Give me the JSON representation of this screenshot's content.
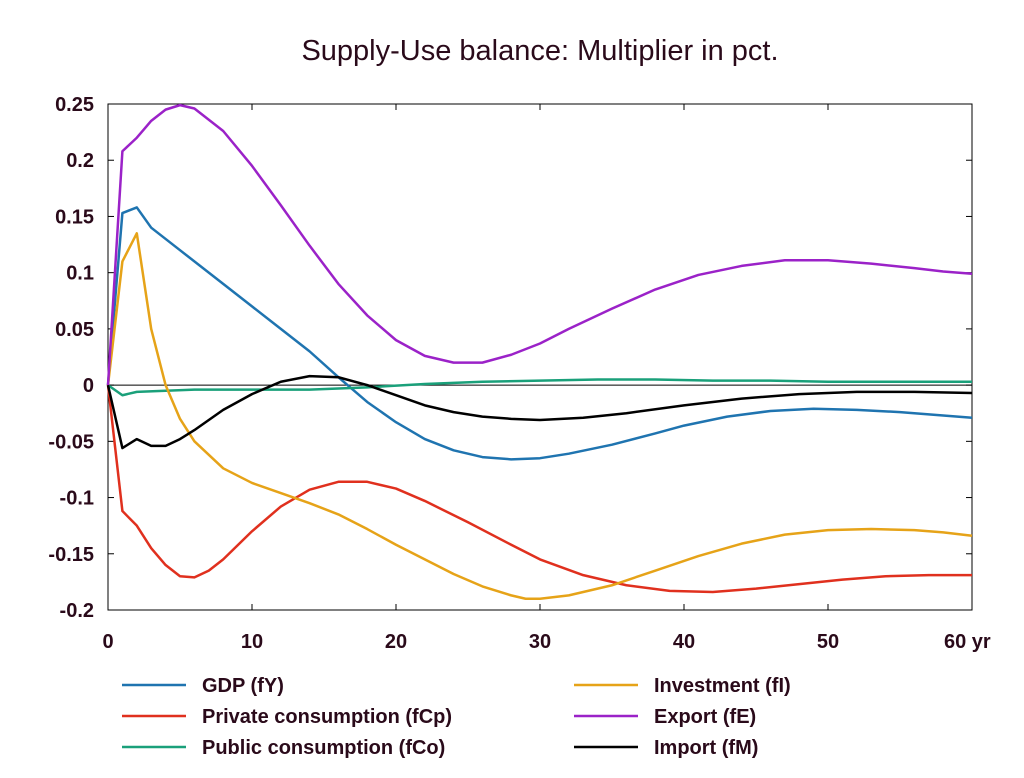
{
  "chart_data": {
    "type": "line",
    "title": "Supply-Use balance: Multiplier in pct.",
    "xlabel": "",
    "ylabel": "",
    "x_unit_label": "yr",
    "xlim": [
      0,
      60
    ],
    "ylim": [
      -0.2,
      0.25
    ],
    "x_ticks": [
      0,
      10,
      20,
      30,
      40,
      50,
      60
    ],
    "y_ticks": [
      0.25,
      0.2,
      0.15,
      0.1,
      0.05,
      0,
      -0.05,
      -0.1,
      -0.15,
      -0.2
    ],
    "y_tick_labels": [
      "0.25",
      "0.2",
      "0.15",
      "0.1",
      "0.05",
      "0",
      "-0.05",
      "-0.1",
      "-0.15",
      "-0.2"
    ],
    "x_tick_labels": [
      "0",
      "10",
      "20",
      "30",
      "40",
      "50",
      "60"
    ],
    "grid": false,
    "legend_position": "bottom",
    "series": [
      {
        "name": "GDP (fY)",
        "color": "#1f74b0",
        "points": [
          [
            0,
            0
          ],
          [
            1,
            0.153
          ],
          [
            2,
            0.158
          ],
          [
            3,
            0.14
          ],
          [
            5,
            0.12
          ],
          [
            8,
            0.09
          ],
          [
            10,
            0.07
          ],
          [
            12,
            0.05
          ],
          [
            14,
            0.03
          ],
          [
            16,
            0.007
          ],
          [
            18,
            -0.015
          ],
          [
            20,
            -0.033
          ],
          [
            22,
            -0.048
          ],
          [
            24,
            -0.058
          ],
          [
            26,
            -0.064
          ],
          [
            28,
            -0.066
          ],
          [
            30,
            -0.065
          ],
          [
            32,
            -0.061
          ],
          [
            35,
            -0.053
          ],
          [
            38,
            -0.043
          ],
          [
            40,
            -0.036
          ],
          [
            43,
            -0.028
          ],
          [
            46,
            -0.023
          ],
          [
            49,
            -0.021
          ],
          [
            52,
            -0.022
          ],
          [
            55,
            -0.024
          ],
          [
            58,
            -0.027
          ],
          [
            60,
            -0.029
          ]
        ]
      },
      {
        "name": "Private consumption (fCp)",
        "color": "#e0301e",
        "points": [
          [
            0,
            0
          ],
          [
            1,
            -0.112
          ],
          [
            2,
            -0.125
          ],
          [
            3,
            -0.145
          ],
          [
            4,
            -0.16
          ],
          [
            5,
            -0.17
          ],
          [
            6,
            -0.171
          ],
          [
            7,
            -0.165
          ],
          [
            8,
            -0.155
          ],
          [
            10,
            -0.13
          ],
          [
            12,
            -0.108
          ],
          [
            14,
            -0.093
          ],
          [
            16,
            -0.086
          ],
          [
            18,
            -0.086
          ],
          [
            20,
            -0.092
          ],
          [
            22,
            -0.103
          ],
          [
            25,
            -0.122
          ],
          [
            28,
            -0.142
          ],
          [
            30,
            -0.155
          ],
          [
            33,
            -0.169
          ],
          [
            36,
            -0.178
          ],
          [
            39,
            -0.183
          ],
          [
            42,
            -0.184
          ],
          [
            45,
            -0.181
          ],
          [
            48,
            -0.177
          ],
          [
            51,
            -0.173
          ],
          [
            54,
            -0.17
          ],
          [
            57,
            -0.169
          ],
          [
            60,
            -0.169
          ]
        ]
      },
      {
        "name": "Public consumption (fCo)",
        "color": "#1aa07a",
        "points": [
          [
            0,
            0
          ],
          [
            1,
            -0.009
          ],
          [
            2,
            -0.006
          ],
          [
            4,
            -0.005
          ],
          [
            6,
            -0.004
          ],
          [
            10,
            -0.004
          ],
          [
            14,
            -0.004
          ],
          [
            18,
            -0.002
          ],
          [
            22,
            0.001
          ],
          [
            26,
            0.003
          ],
          [
            30,
            0.004
          ],
          [
            34,
            0.005
          ],
          [
            38,
            0.005
          ],
          [
            42,
            0.004
          ],
          [
            46,
            0.004
          ],
          [
            50,
            0.003
          ],
          [
            55,
            0.003
          ],
          [
            60,
            0.003
          ]
        ]
      },
      {
        "name": "Investment (fI)",
        "color": "#e6a318",
        "points": [
          [
            0,
            0
          ],
          [
            1,
            0.11
          ],
          [
            2,
            0.135
          ],
          [
            3,
            0.05
          ],
          [
            4,
            0.0
          ],
          [
            5,
            -0.03
          ],
          [
            6,
            -0.05
          ],
          [
            8,
            -0.074
          ],
          [
            10,
            -0.087
          ],
          [
            12,
            -0.096
          ],
          [
            14,
            -0.105
          ],
          [
            16,
            -0.115
          ],
          [
            18,
            -0.128
          ],
          [
            20,
            -0.142
          ],
          [
            22,
            -0.155
          ],
          [
            24,
            -0.168
          ],
          [
            26,
            -0.179
          ],
          [
            28,
            -0.187
          ],
          [
            29,
            -0.19
          ],
          [
            30,
            -0.19
          ],
          [
            32,
            -0.187
          ],
          [
            35,
            -0.178
          ],
          [
            38,
            -0.165
          ],
          [
            41,
            -0.152
          ],
          [
            44,
            -0.141
          ],
          [
            47,
            -0.133
          ],
          [
            50,
            -0.129
          ],
          [
            53,
            -0.128
          ],
          [
            56,
            -0.129
          ],
          [
            58,
            -0.131
          ],
          [
            60,
            -0.134
          ]
        ]
      },
      {
        "name": "Export (fE)",
        "color": "#9b22c8",
        "points": [
          [
            0,
            0
          ],
          [
            1,
            0.208
          ],
          [
            2,
            0.22
          ],
          [
            3,
            0.235
          ],
          [
            4,
            0.245
          ],
          [
            5,
            0.249
          ],
          [
            6,
            0.246
          ],
          [
            8,
            0.226
          ],
          [
            10,
            0.195
          ],
          [
            12,
            0.16
          ],
          [
            14,
            0.124
          ],
          [
            16,
            0.09
          ],
          [
            18,
            0.062
          ],
          [
            20,
            0.04
          ],
          [
            22,
            0.026
          ],
          [
            24,
            0.02
          ],
          [
            26,
            0.02
          ],
          [
            28,
            0.027
          ],
          [
            30,
            0.037
          ],
          [
            32,
            0.05
          ],
          [
            35,
            0.068
          ],
          [
            38,
            0.085
          ],
          [
            41,
            0.098
          ],
          [
            44,
            0.106
          ],
          [
            47,
            0.111
          ],
          [
            50,
            0.111
          ],
          [
            53,
            0.108
          ],
          [
            56,
            0.104
          ],
          [
            58,
            0.101
          ],
          [
            60,
            0.099
          ]
        ]
      },
      {
        "name": "Import (fM)",
        "color": "#000000",
        "points": [
          [
            0,
            0
          ],
          [
            1,
            -0.056
          ],
          [
            2,
            -0.048
          ],
          [
            3,
            -0.054
          ],
          [
            4,
            -0.054
          ],
          [
            5,
            -0.048
          ],
          [
            6,
            -0.04
          ],
          [
            8,
            -0.022
          ],
          [
            10,
            -0.008
          ],
          [
            12,
            0.003
          ],
          [
            14,
            0.008
          ],
          [
            16,
            0.007
          ],
          [
            18,
            0.0
          ],
          [
            20,
            -0.009
          ],
          [
            22,
            -0.018
          ],
          [
            24,
            -0.024
          ],
          [
            26,
            -0.028
          ],
          [
            28,
            -0.03
          ],
          [
            30,
            -0.031
          ],
          [
            33,
            -0.029
          ],
          [
            36,
            -0.025
          ],
          [
            40,
            -0.018
          ],
          [
            44,
            -0.012
          ],
          [
            48,
            -0.008
          ],
          [
            52,
            -0.006
          ],
          [
            56,
            -0.006
          ],
          [
            60,
            -0.007
          ]
        ]
      }
    ],
    "legend_columns": [
      [
        "GDP (fY)",
        "Private consumption (fCp)",
        "Public consumption (fCo)"
      ],
      [
        "Investment (fI)",
        "Export (fE)",
        "Import (fM)"
      ]
    ]
  }
}
